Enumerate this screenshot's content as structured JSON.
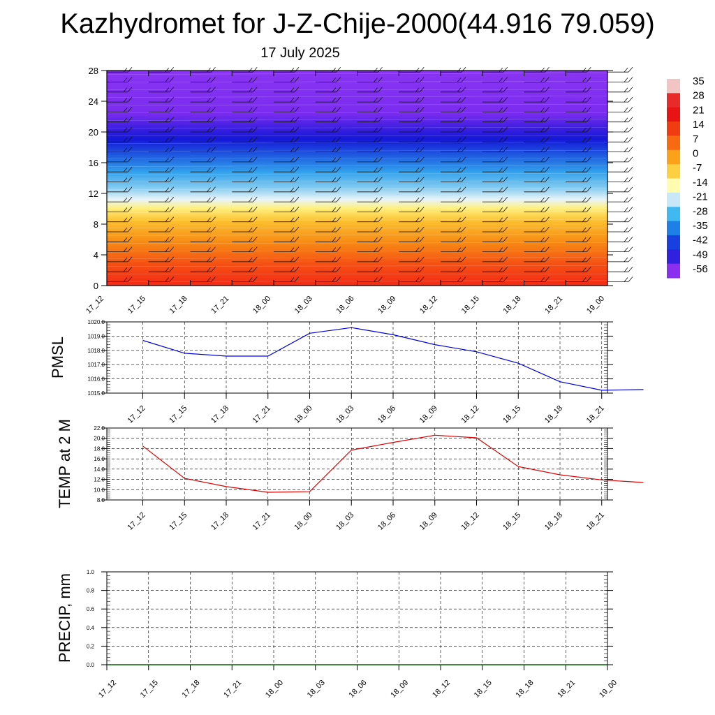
{
  "title": "Kazhydromet for J-Z-Chije-2000(44.916 79.059)",
  "subtitle": "17 July 2025",
  "x_labels": [
    "17_12",
    "17_15",
    "17_18",
    "17_21",
    "18_00",
    "18_03",
    "18_06",
    "18_09",
    "18_12",
    "18_15",
    "18_18",
    "18_21",
    "19_00"
  ],
  "colors": {
    "pmsl_line": "#0000dd",
    "temp_line": "#dd0000",
    "precip_line": "#006400",
    "grid": "#000000"
  },
  "chart_data": [
    {
      "type": "heatmap",
      "description_units": "temperature vs height with wind barbs",
      "y_ticks": [
        0,
        4,
        8,
        12,
        16,
        20,
        24,
        28
      ],
      "ylim": [
        0,
        28
      ],
      "x": [
        "17_12",
        "17_15",
        "17_18",
        "17_21",
        "18_00",
        "18_03",
        "18_06",
        "18_09",
        "18_12",
        "18_15",
        "18_18",
        "18_21",
        "19_00"
      ],
      "colorbar": {
        "labels": [
          "35",
          "28",
          "21",
          "14",
          "7",
          "0",
          "-7",
          "-14",
          "-21",
          "-28",
          "-35",
          "-42",
          "-49",
          "-56"
        ],
        "colors": [
          "#f2c4c4",
          "#e82a2a",
          "#e81414",
          "#f03c10",
          "#f76a10",
          "#fca21a",
          "#fcd040",
          "#fffcb0",
          "#c8e8f8",
          "#40b8f0",
          "#1c80e8",
          "#1840e0",
          "#3020e0",
          "#8a2ef0"
        ]
      }
    },
    {
      "type": "line",
      "ylabel": "PMSL",
      "ylim": [
        1015.0,
        1020.0
      ],
      "y_ticks": [
        "1015.0",
        "1016.0",
        "1017.0",
        "1018.0",
        "1019.0",
        "1020.0"
      ],
      "x": [
        "17_12",
        "17_15",
        "17_18",
        "17_21",
        "18_00",
        "18_03",
        "18_06",
        "18_09",
        "18_12",
        "18_15",
        "18_18",
        "18_21",
        "19_00"
      ],
      "values": [
        1018.7,
        1017.8,
        1017.6,
        1017.6,
        1019.2,
        1019.6,
        1019.1,
        1018.4,
        1017.9,
        1017.1,
        1015.8,
        1015.2,
        1015.25
      ]
    },
    {
      "type": "line",
      "ylabel": "TEMP at 2 M",
      "ylim": [
        8.0,
        22.0
      ],
      "y_ticks": [
        "8.0",
        "10.0",
        "12.0",
        "14.0",
        "16.0",
        "18.0",
        "20.0",
        "22.0"
      ],
      "x": [
        "17_12",
        "17_15",
        "17_18",
        "17_21",
        "18_00",
        "18_03",
        "18_06",
        "18_09",
        "18_12",
        "18_15",
        "18_18",
        "18_21",
        "19_00"
      ],
      "values": [
        18.5,
        12.2,
        10.6,
        9.5,
        9.6,
        17.7,
        19.2,
        20.6,
        20.1,
        14.5,
        12.9,
        11.9,
        11.4
      ]
    },
    {
      "type": "line",
      "ylabel": "PRECIP, mm",
      "ylim": [
        0.0,
        1.0
      ],
      "y_ticks": [
        "0.0",
        "0.2",
        "0.4",
        "0.6",
        "0.8",
        "1.0"
      ],
      "x": [
        "17_12",
        "17_15",
        "17_18",
        "17_21",
        "18_00",
        "18_03",
        "18_06",
        "18_09",
        "18_12",
        "18_15",
        "18_18",
        "18_21",
        "19_00"
      ],
      "values": [
        0,
        0,
        0,
        0,
        0,
        0,
        0,
        0,
        0,
        0,
        0,
        0,
        0
      ]
    }
  ]
}
